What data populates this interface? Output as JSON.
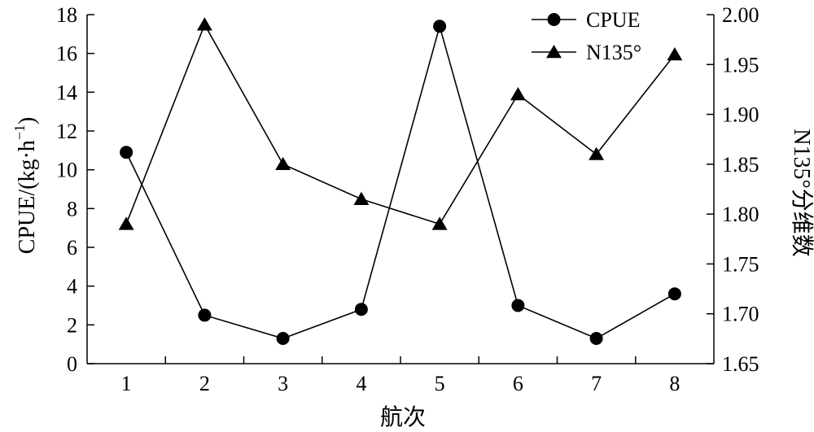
{
  "chart_data": {
    "type": "line",
    "xlabel": "航次",
    "ylabel_left": "CPUE/(kg·h",
    "ylabel_left_sup": "−1",
    "ylabel_left_tail": ")",
    "ylabel_right": "N135°分维数",
    "categories": [
      "1",
      "2",
      "3",
      "4",
      "5",
      "6",
      "7",
      "8"
    ],
    "ylim_left": [
      0,
      18
    ],
    "yticks_left": [
      "0",
      "2",
      "4",
      "6",
      "8",
      "10",
      "12",
      "14",
      "16",
      "18"
    ],
    "ylim_right": [
      1.65,
      2.0
    ],
    "yticks_right": [
      "1.65",
      "1.70",
      "1.75",
      "1.80",
      "1.85",
      "1.90",
      "1.95",
      "2.00"
    ],
    "series": [
      {
        "name": "CPUE",
        "axis": "left",
        "marker": "circle",
        "values": [
          10.9,
          2.5,
          1.3,
          2.8,
          17.4,
          3.0,
          1.3,
          3.6
        ]
      },
      {
        "name": "N135°",
        "axis": "right",
        "marker": "triangle",
        "values": [
          1.79,
          1.99,
          1.85,
          1.815,
          1.79,
          1.92,
          1.86,
          1.96
        ]
      }
    ],
    "legend_position": "top-right",
    "grid": false
  }
}
